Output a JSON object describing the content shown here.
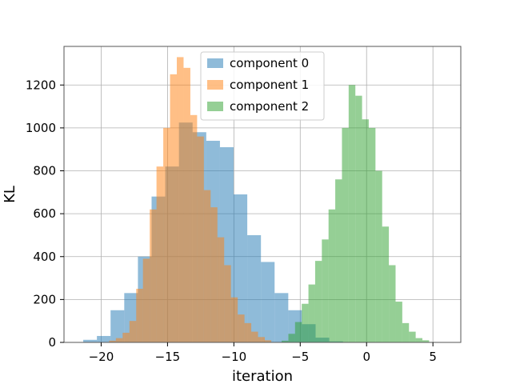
{
  "chart_data": {
    "type": "histogram",
    "title": "",
    "xlabel": "iteration",
    "ylabel": "KL",
    "xlim": [
      -22.8,
      7.1
    ],
    "ylim": [
      0,
      1380
    ],
    "xticks": [
      -20,
      -15,
      -10,
      -5,
      0,
      5
    ],
    "xtick_labels": [
      "−20",
      "−15",
      "−10",
      "−5",
      "0",
      "5"
    ],
    "yticks": [
      0,
      200,
      400,
      600,
      800,
      1000,
      1200
    ],
    "ytick_labels": [
      "0",
      "200",
      "400",
      "600",
      "800",
      "1000",
      "1200"
    ],
    "grid": true,
    "legend_position": "upper-center",
    "bar_opacity": 0.5,
    "series": [
      {
        "name": "component 0",
        "color": "#1f77b4",
        "bin_width": 1.03,
        "bin_left": [
          -21.35,
          -20.32,
          -19.29,
          -18.26,
          -17.23,
          -16.2,
          -15.17,
          -14.14,
          -13.11,
          -12.08,
          -11.05,
          -10.02,
          -8.99,
          -7.96,
          -6.93,
          -5.9,
          -4.87,
          -3.84,
          -2.81
        ],
        "counts": [
          12,
          30,
          150,
          230,
          400,
          680,
          820,
          1025,
          980,
          940,
          910,
          690,
          500,
          375,
          230,
          150,
          85,
          22,
          5
        ]
      },
      {
        "name": "component 1",
        "color": "#ff7f0e",
        "bin_width": 0.51,
        "bin_left": [
          -19.4,
          -18.89,
          -18.38,
          -17.87,
          -17.36,
          -16.85,
          -16.34,
          -15.83,
          -15.32,
          -14.81,
          -14.3,
          -13.79,
          -13.28,
          -12.77,
          -12.26,
          -11.75,
          -11.24,
          -10.73,
          -10.22,
          -9.71,
          -9.2,
          -8.69,
          -8.18,
          -7.69
        ],
        "counts": [
          8,
          20,
          45,
          100,
          250,
          390,
          620,
          820,
          1000,
          1250,
          1330,
          1280,
          1060,
          960,
          710,
          630,
          490,
          360,
          210,
          130,
          90,
          50,
          25,
          10
        ]
      },
      {
        "name": "component 2",
        "color": "#2ca02c",
        "bin_width": 0.505,
        "bin_left": [
          -6.4,
          -5.895,
          -5.39,
          -4.885,
          -4.38,
          -3.875,
          -3.37,
          -2.865,
          -2.36,
          -1.855,
          -1.35,
          -0.845,
          -0.34,
          0.165,
          0.67,
          1.175,
          1.68,
          2.185,
          2.69,
          3.195,
          3.7,
          4.205,
          4.71
        ],
        "counts": [
          8,
          40,
          95,
          180,
          270,
          380,
          480,
          620,
          760,
          1000,
          1200,
          1150,
          1040,
          1000,
          800,
          540,
          360,
          190,
          90,
          50,
          20,
          10,
          2
        ]
      }
    ]
  }
}
